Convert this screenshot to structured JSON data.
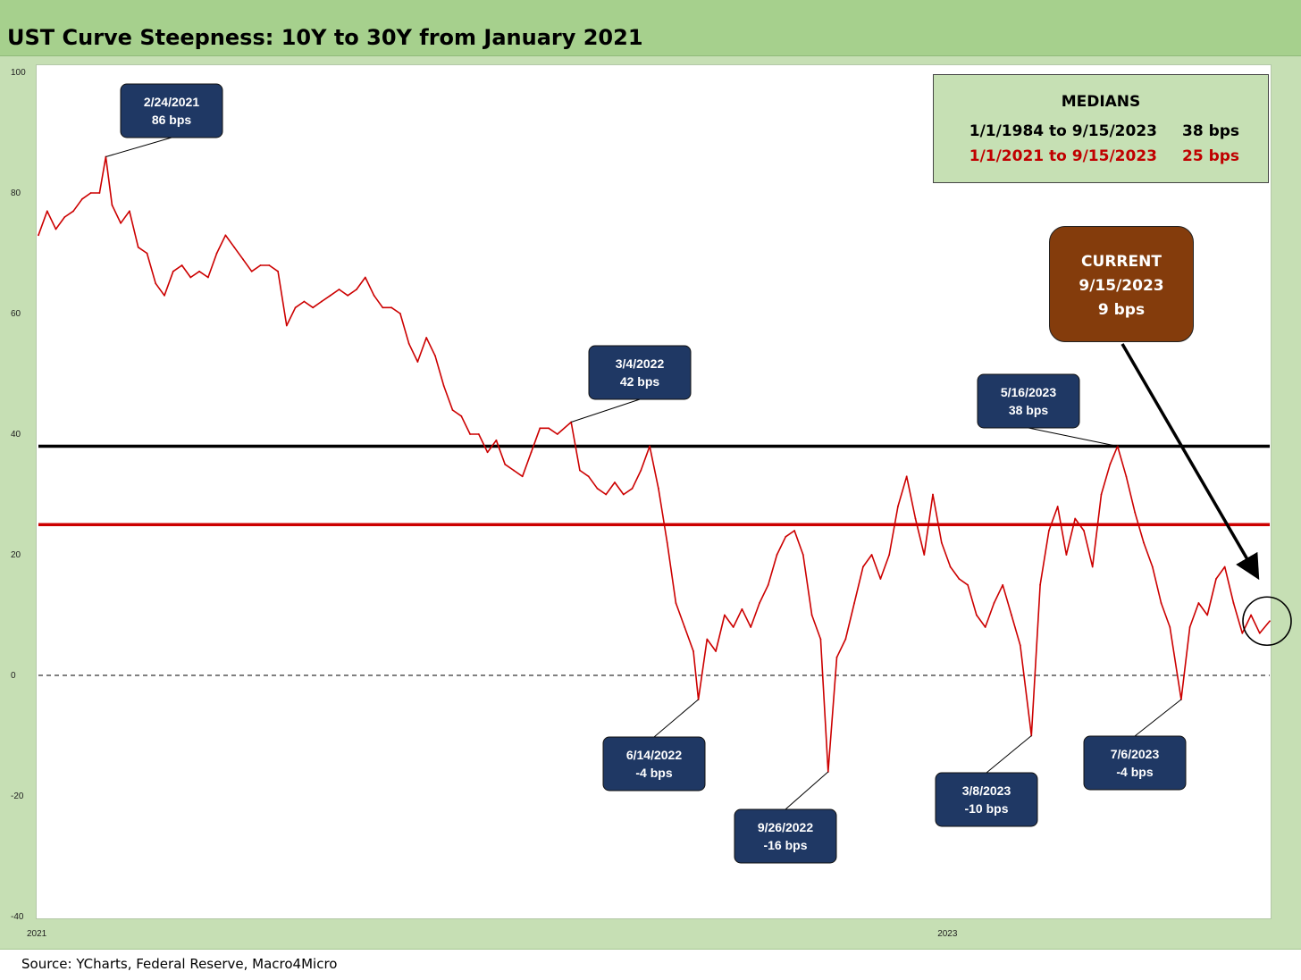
{
  "title": "UST Curve Steepness: 10Y to 30Y from January 2021",
  "source": "Source: YCharts, Federal Reserve, Macro4Micro",
  "medians": {
    "title": "MEDIANS",
    "rows": [
      {
        "period": "1/1/1984 to 9/15/2023",
        "value": "38 bps",
        "color": "#000000"
      },
      {
        "period": "1/1/2021 to 9/15/2023",
        "value": "25 bps",
        "color": "#c00000"
      }
    ]
  },
  "current": {
    "label": "CURRENT",
    "date": "9/15/2023",
    "value": "9 bps",
    "color": "#843c0c"
  },
  "colors": {
    "series": "#cc0000",
    "median_long": "#000000",
    "median_short": "#cc0000",
    "callout": "#1f3864",
    "frame": "#c6dfb4",
    "title_bar": "#a6d08d"
  },
  "chart_data": {
    "type": "line",
    "title": "UST Curve Steepness: 10Y to 30Y from January 2021",
    "xlabel": "",
    "ylabel": "",
    "ylim": [
      -40,
      100
    ],
    "yticks": [
      100,
      80,
      60,
      40,
      20,
      0,
      -20,
      -40
    ],
    "x_ticks": [
      {
        "label": "2021",
        "date": "2021-01-01"
      },
      {
        "label": "2023",
        "date": "2023-01-01"
      }
    ],
    "xlim": [
      "2021-01-01",
      "2023-09-15"
    ],
    "grid": false,
    "reference_lines": [
      {
        "value": 38,
        "color": "#000000",
        "style": "solid"
      },
      {
        "value": 25,
        "color": "#cc0000",
        "style": "solid"
      },
      {
        "value": 0,
        "color": "#000000",
        "style": "dashed"
      }
    ],
    "series": [
      {
        "values": [
          [
            "2021-01-01",
            73
          ],
          [
            "2021-01-08",
            77
          ],
          [
            "2021-01-15",
            74
          ],
          [
            "2021-01-22",
            76
          ],
          [
            "2021-01-29",
            77
          ],
          [
            "2021-02-05",
            79
          ],
          [
            "2021-02-12",
            80
          ],
          [
            "2021-02-19",
            80
          ],
          [
            "2021-02-24",
            86
          ],
          [
            "2021-03-01",
            78
          ],
          [
            "2021-03-08",
            75
          ],
          [
            "2021-03-15",
            77
          ],
          [
            "2021-03-22",
            71
          ],
          [
            "2021-03-29",
            70
          ],
          [
            "2021-04-05",
            65
          ],
          [
            "2021-04-12",
            63
          ],
          [
            "2021-04-19",
            67
          ],
          [
            "2021-04-26",
            68
          ],
          [
            "2021-05-03",
            66
          ],
          [
            "2021-05-10",
            67
          ],
          [
            "2021-05-17",
            66
          ],
          [
            "2021-05-24",
            70
          ],
          [
            "2021-05-31",
            73
          ],
          [
            "2021-06-07",
            71
          ],
          [
            "2021-06-14",
            69
          ],
          [
            "2021-06-21",
            67
          ],
          [
            "2021-06-28",
            68
          ],
          [
            "2021-07-05",
            68
          ],
          [
            "2021-07-12",
            67
          ],
          [
            "2021-07-19",
            58
          ],
          [
            "2021-07-26",
            61
          ],
          [
            "2021-08-02",
            62
          ],
          [
            "2021-08-09",
            61
          ],
          [
            "2021-08-16",
            62
          ],
          [
            "2021-08-23",
            63
          ],
          [
            "2021-08-30",
            64
          ],
          [
            "2021-09-06",
            63
          ],
          [
            "2021-09-13",
            64
          ],
          [
            "2021-09-20",
            66
          ],
          [
            "2021-09-27",
            63
          ],
          [
            "2021-10-04",
            61
          ],
          [
            "2021-10-11",
            61
          ],
          [
            "2021-10-18",
            60
          ],
          [
            "2021-10-25",
            55
          ],
          [
            "2021-11-01",
            52
          ],
          [
            "2021-11-08",
            56
          ],
          [
            "2021-11-15",
            53
          ],
          [
            "2021-11-22",
            48
          ],
          [
            "2021-11-29",
            44
          ],
          [
            "2021-12-06",
            43
          ],
          [
            "2021-12-13",
            40
          ],
          [
            "2021-12-20",
            40
          ],
          [
            "2021-12-27",
            37
          ],
          [
            "2022-01-03",
            39
          ],
          [
            "2022-01-10",
            35
          ],
          [
            "2022-01-17",
            34
          ],
          [
            "2022-01-24",
            33
          ],
          [
            "2022-01-31",
            37
          ],
          [
            "2022-02-07",
            41
          ],
          [
            "2022-02-14",
            41
          ],
          [
            "2022-02-21",
            40
          ],
          [
            "2022-03-04",
            42
          ],
          [
            "2022-03-11",
            34
          ],
          [
            "2022-03-18",
            33
          ],
          [
            "2022-03-25",
            31
          ],
          [
            "2022-04-01",
            30
          ],
          [
            "2022-04-08",
            32
          ],
          [
            "2022-04-15",
            30
          ],
          [
            "2022-04-22",
            31
          ],
          [
            "2022-04-29",
            34
          ],
          [
            "2022-05-06",
            38
          ],
          [
            "2022-05-13",
            31
          ],
          [
            "2022-05-20",
            22
          ],
          [
            "2022-05-27",
            12
          ],
          [
            "2022-06-03",
            8
          ],
          [
            "2022-06-10",
            4
          ],
          [
            "2022-06-14",
            -4
          ],
          [
            "2022-06-21",
            6
          ],
          [
            "2022-06-28",
            4
          ],
          [
            "2022-07-05",
            10
          ],
          [
            "2022-07-12",
            8
          ],
          [
            "2022-07-19",
            11
          ],
          [
            "2022-07-26",
            8
          ],
          [
            "2022-08-02",
            12
          ],
          [
            "2022-08-09",
            15
          ],
          [
            "2022-08-16",
            20
          ],
          [
            "2022-08-23",
            23
          ],
          [
            "2022-08-30",
            24
          ],
          [
            "2022-09-06",
            20
          ],
          [
            "2022-09-13",
            10
          ],
          [
            "2022-09-20",
            6
          ],
          [
            "2022-09-26",
            -16
          ],
          [
            "2022-10-03",
            3
          ],
          [
            "2022-10-10",
            6
          ],
          [
            "2022-10-17",
            12
          ],
          [
            "2022-10-24",
            18
          ],
          [
            "2022-10-31",
            20
          ],
          [
            "2022-11-07",
            16
          ],
          [
            "2022-11-14",
            20
          ],
          [
            "2022-11-21",
            28
          ],
          [
            "2022-11-28",
            33
          ],
          [
            "2022-12-05",
            26
          ],
          [
            "2022-12-12",
            20
          ],
          [
            "2022-12-19",
            30
          ],
          [
            "2022-12-26",
            22
          ],
          [
            "2023-01-02",
            18
          ],
          [
            "2023-01-09",
            16
          ],
          [
            "2023-01-16",
            15
          ],
          [
            "2023-01-23",
            10
          ],
          [
            "2023-01-30",
            8
          ],
          [
            "2023-02-06",
            12
          ],
          [
            "2023-02-13",
            15
          ],
          [
            "2023-02-20",
            10
          ],
          [
            "2023-02-27",
            5
          ],
          [
            "2023-03-08",
            -10
          ],
          [
            "2023-03-15",
            15
          ],
          [
            "2023-03-22",
            24
          ],
          [
            "2023-03-29",
            28
          ],
          [
            "2023-04-05",
            20
          ],
          [
            "2023-04-12",
            26
          ],
          [
            "2023-04-19",
            24
          ],
          [
            "2023-04-26",
            18
          ],
          [
            "2023-05-03",
            30
          ],
          [
            "2023-05-10",
            35
          ],
          [
            "2023-05-16",
            38
          ],
          [
            "2023-05-23",
            33
          ],
          [
            "2023-05-30",
            27
          ],
          [
            "2023-06-06",
            22
          ],
          [
            "2023-06-13",
            18
          ],
          [
            "2023-06-20",
            12
          ],
          [
            "2023-06-27",
            8
          ],
          [
            "2023-07-06",
            -4
          ],
          [
            "2023-07-13",
            8
          ],
          [
            "2023-07-20",
            12
          ],
          [
            "2023-07-27",
            10
          ],
          [
            "2023-08-03",
            16
          ],
          [
            "2023-08-10",
            18
          ],
          [
            "2023-08-17",
            12
          ],
          [
            "2023-08-24",
            7
          ],
          [
            "2023-08-31",
            10
          ],
          [
            "2023-09-07",
            7
          ],
          [
            "2023-09-15",
            9
          ]
        ]
      }
    ],
    "annotations": [
      {
        "date": "2/24/2021",
        "value": "86 bps",
        "x": "2021-02-24",
        "y": 86
      },
      {
        "date": "3/4/2022",
        "value": "42 bps",
        "x": "2022-03-04",
        "y": 42
      },
      {
        "date": "5/16/2023",
        "value": "38 bps",
        "x": "2023-05-16",
        "y": 38
      },
      {
        "date": "6/14/2022",
        "value": "-4 bps",
        "x": "2022-06-14",
        "y": -4
      },
      {
        "date": "9/26/2022",
        "value": "-16 bps",
        "x": "2022-09-26",
        "y": -16
      },
      {
        "date": "3/8/2023",
        "value": "-10 bps",
        "x": "2023-03-08",
        "y": -10
      },
      {
        "date": "7/6/2023",
        "value": "-4 bps",
        "x": "2023-07-06",
        "y": -4
      }
    ]
  }
}
